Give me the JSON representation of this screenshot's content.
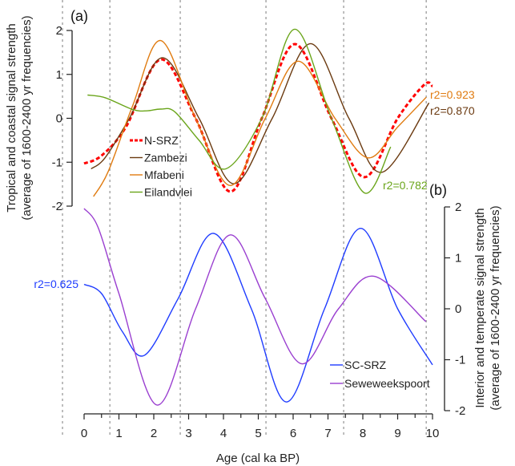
{
  "chart_data": [
    {
      "panel": "(a)",
      "type": "line",
      "ylabel_lines": [
        "Tropical and coastal signal strength",
        "(average of 1600-2400 yr frequencies)"
      ],
      "ylim": [
        -2,
        2
      ],
      "yticks": [
        -2,
        -1,
        0,
        1,
        2
      ],
      "y_axis_side": "left",
      "legend_placement": "center-left",
      "series": [
        {
          "name": "N-SRZ",
          "color": "#ff0000",
          "dashed": true,
          "points": [
            [
              0,
              -1.03
            ],
            [
              0.5,
              -0.85
            ],
            [
              1.2,
              -0.2
            ],
            [
              2.2,
              1.34
            ],
            [
              3.2,
              0.0
            ],
            [
              4.2,
              -1.67
            ],
            [
              5.1,
              0.0
            ],
            [
              6.05,
              1.69
            ],
            [
              7.1,
              0.0
            ],
            [
              8.05,
              -1.34
            ],
            [
              9.0,
              0.0
            ],
            [
              9.77,
              0.77
            ],
            [
              10,
              0.73
            ]
          ]
        },
        {
          "name": "Zambezi",
          "color": "#6b3a10",
          "r2": "r2=0.870",
          "points": [
            [
              0.2,
              -1.15
            ],
            [
              0.6,
              -0.9
            ],
            [
              1.3,
              0.0
            ],
            [
              2.25,
              1.38
            ],
            [
              3.3,
              0.0
            ],
            [
              4.3,
              -1.49
            ],
            [
              5.4,
              0.0
            ],
            [
              6.5,
              1.7
            ],
            [
              7.6,
              0.0
            ],
            [
              8.55,
              -1.23
            ],
            [
              9.9,
              0.35
            ]
          ]
        },
        {
          "name": "Mfabeni",
          "color": "#e07b10",
          "r2": "r2=0.923",
          "points": [
            [
              0.27,
              -1.78
            ],
            [
              0.7,
              -1.2
            ],
            [
              1.4,
              0.3
            ],
            [
              2.2,
              1.77
            ],
            [
              3.2,
              0.0
            ],
            [
              4.2,
              -1.53
            ],
            [
              5.2,
              0.0
            ],
            [
              6.15,
              1.3
            ],
            [
              7.2,
              0.0
            ],
            [
              8.15,
              -0.9
            ],
            [
              9.0,
              -0.2
            ],
            [
              9.82,
              0.48
            ]
          ]
        },
        {
          "name": "Eilandvlei",
          "color": "#6aa51a",
          "r2": "r2=0.782",
          "points": [
            [
              0.1,
              0.53
            ],
            [
              0.6,
              0.47
            ],
            [
              1.4,
              0.2
            ],
            [
              1.8,
              0.17
            ],
            [
              2.2,
              0.21
            ],
            [
              2.6,
              0.15
            ],
            [
              3.3,
              -0.5
            ],
            [
              4.07,
              -1.15
            ],
            [
              5.1,
              0.0
            ],
            [
              6.05,
              2.03
            ],
            [
              7.1,
              0.0
            ],
            [
              8.05,
              -1.7
            ],
            [
              8.8,
              -0.65
            ]
          ]
        }
      ]
    },
    {
      "panel": "(b)",
      "type": "line",
      "ylabel_lines": [
        "Interior and temperate signal strength",
        "(average of 1600-2400 yr frequencies)"
      ],
      "ylim": [
        -2,
        2
      ],
      "yticks": [
        -2,
        -1,
        0,
        1,
        2
      ],
      "y_axis_side": "right",
      "legend_placement": "bottom-right",
      "series": [
        {
          "name": "SC-SRZ",
          "color": "#1f3cff",
          "r2": "r2=0.625",
          "points": [
            [
              0,
              0.48
            ],
            [
              0.5,
              0.3
            ],
            [
              1.1,
              -0.45
            ],
            [
              1.74,
              -0.91
            ],
            [
              2.7,
              0.2
            ],
            [
              3.72,
              1.48
            ],
            [
              4.8,
              0.0
            ],
            [
              5.81,
              -1.83
            ],
            [
              6.9,
              0.0
            ],
            [
              7.94,
              1.58
            ],
            [
              9.0,
              0.0
            ],
            [
              10,
              -1.1
            ]
          ]
        },
        {
          "name": "Seweweekspoort",
          "color": "#9a3fd0",
          "points": [
            [
              0,
              1.97
            ],
            [
              0.4,
              1.6
            ],
            [
              1.0,
              0.3
            ],
            [
              2.09,
              -1.89
            ],
            [
              3.2,
              0.0
            ],
            [
              4.19,
              1.45
            ],
            [
              5.2,
              0.2
            ],
            [
              6.25,
              -1.08
            ],
            [
              7.3,
              0.0
            ],
            [
              8.32,
              0.64
            ],
            [
              9.81,
              -0.25
            ]
          ]
        }
      ]
    }
  ],
  "x_axis": {
    "label": "Age (cal ka BP)",
    "xlim": [
      0,
      10
    ],
    "ticks": [
      0,
      1,
      2,
      3,
      4,
      5,
      6,
      7,
      8,
      9,
      10
    ],
    "minor_ticks_step": 0.5
  },
  "vertical_reference_lines": [
    -0.62,
    0.74,
    2.76,
    5.22,
    7.45,
    9.82
  ],
  "reference_line_color": "#9a9a9a"
}
